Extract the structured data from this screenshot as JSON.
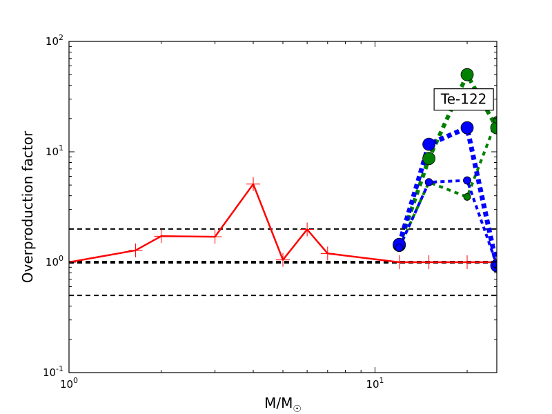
{
  "chart_data": {
    "type": "line",
    "title": "",
    "xlabel": "M/M",
    "xlabel_sub": "☉",
    "ylabel": "Overproduction factor",
    "xscale": "log",
    "yscale": "log",
    "xlim": [
      1,
      25
    ],
    "ylim": [
      0.1,
      100
    ],
    "x_ticks": [
      {
        "value": 1,
        "base": "10",
        "exp": "0"
      },
      {
        "value": 10,
        "base": "10",
        "exp": "1"
      }
    ],
    "y_ticks": [
      {
        "value": 0.1,
        "base": "10",
        "exp": "-1"
      },
      {
        "value": 1,
        "base": "10",
        "exp": "0"
      },
      {
        "value": 10,
        "base": "10",
        "exp": "1"
      },
      {
        "value": 100,
        "base": "10",
        "exp": "2"
      }
    ],
    "hlines": [
      {
        "y": 2.0,
        "color": "#000000",
        "width": 2,
        "dash": "7,5"
      },
      {
        "y": 1.0,
        "color": "#000000",
        "width": 4,
        "dash": "7,5"
      },
      {
        "y": 0.5,
        "color": "#000000",
        "width": 2,
        "dash": "7,5"
      }
    ],
    "annotation": {
      "text": "Te-122",
      "x": 19.5,
      "y": 30
    },
    "series": [
      {
        "color": "#ff0000",
        "line_width": 2.5,
        "dash": "",
        "marker": "plus",
        "marker_size": 10,
        "x": [
          1.0,
          1.65,
          2.0,
          3.0,
          4.0,
          5.0,
          6.0,
          7.0,
          12.0,
          15.0,
          20.0,
          25.0
        ],
        "y": [
          1.0,
          1.28,
          1.72,
          1.7,
          5.1,
          1.05,
          1.98,
          1.2,
          1.0,
          1.0,
          1.0,
          1.0
        ]
      },
      {
        "color": "#008000",
        "line_width": 6,
        "dash": "7,6",
        "marker": "circle",
        "marker_size": 9,
        "x": [
          12.0,
          15.0,
          20.0,
          25.0
        ],
        "y": [
          1.42,
          8.7,
          50.0,
          16.5
        ]
      },
      {
        "color": "#008000",
        "line_width": 4,
        "dash": "6,6",
        "marker": "circle",
        "marker_size": 5,
        "x": [
          12.0,
          15.0,
          20.0,
          25.0
        ],
        "y": [
          1.35,
          5.3,
          3.9,
          19.5
        ]
      },
      {
        "color": "#0000ff",
        "line_width": 7,
        "dash": "7,5",
        "marker": "circle",
        "marker_size": 9,
        "x": [
          12.0,
          15.0,
          20.0,
          25.0
        ],
        "y": [
          1.45,
          11.7,
          16.5,
          0.93
        ]
      },
      {
        "color": "#0000ff",
        "line_width": 4,
        "dash": "6,5",
        "marker": "circle",
        "marker_size": 5.5,
        "x": [
          12.0,
          15.0,
          20.0,
          25.0
        ],
        "y": [
          1.35,
          5.3,
          5.5,
          0.95
        ]
      }
    ]
  }
}
